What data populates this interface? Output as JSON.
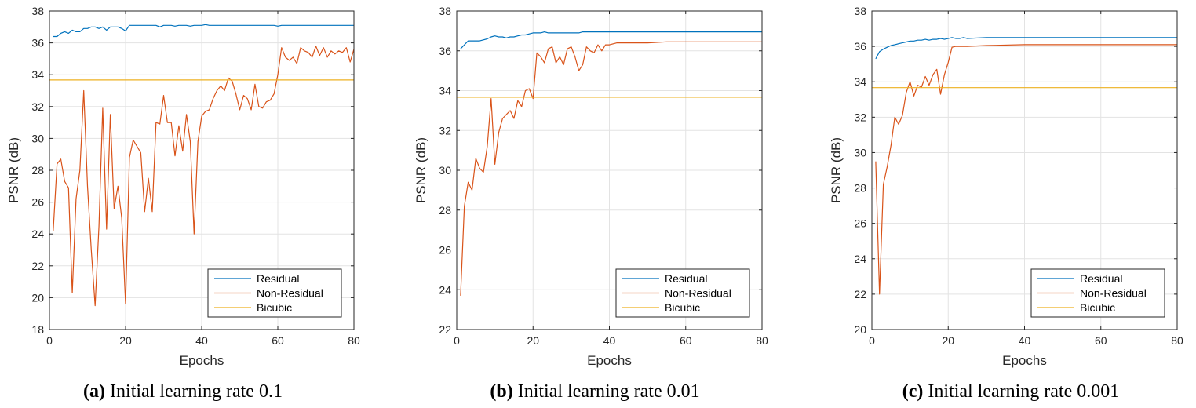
{
  "chart_data": [
    {
      "type": "line",
      "caption_tag": "(a)",
      "caption_text": "Initial learning rate 0.1",
      "xlabel": "Epochs",
      "ylabel": "PSNR (dB)",
      "xlim": [
        0,
        80
      ],
      "ylim": [
        18,
        38
      ],
      "xticks": [
        0,
        20,
        40,
        60,
        80
      ],
      "yticks": [
        18,
        20,
        22,
        24,
        26,
        28,
        30,
        32,
        34,
        36,
        38
      ],
      "grid": true,
      "legend_position": "bottom-right",
      "series": [
        {
          "name": "Residual",
          "color": "#0072BD",
          "x": [
            1,
            2,
            3,
            4,
            5,
            6,
            7,
            8,
            9,
            10,
            11,
            12,
            13,
            14,
            15,
            16,
            17,
            18,
            19,
            20,
            21,
            22,
            23,
            24,
            25,
            26,
            27,
            28,
            29,
            30,
            31,
            32,
            33,
            34,
            35,
            36,
            37,
            38,
            39,
            40,
            41,
            42,
            43,
            44,
            45,
            46,
            47,
            48,
            49,
            50,
            51,
            52,
            53,
            54,
            55,
            56,
            57,
            58,
            59,
            60,
            61,
            62,
            63,
            64,
            65,
            66,
            67,
            68,
            69,
            70,
            71,
            72,
            73,
            74,
            75,
            76,
            77,
            78,
            79,
            80
          ],
          "values": [
            36.4,
            36.4,
            36.6,
            36.7,
            36.6,
            36.8,
            36.7,
            36.7,
            36.9,
            36.9,
            37.0,
            37.0,
            36.9,
            37.0,
            36.8,
            37.0,
            37.0,
            37.0,
            36.9,
            36.75,
            37.1,
            37.1,
            37.1,
            37.1,
            37.1,
            37.1,
            37.1,
            37.1,
            37.0,
            37.1,
            37.1,
            37.1,
            37.05,
            37.1,
            37.1,
            37.1,
            37.05,
            37.1,
            37.1,
            37.1,
            37.15,
            37.1,
            37.1,
            37.1,
            37.1,
            37.1,
            37.1,
            37.1,
            37.1,
            37.1,
            37.1,
            37.1,
            37.1,
            37.1,
            37.1,
            37.1,
            37.1,
            37.1,
            37.1,
            37.05,
            37.1,
            37.1,
            37.1,
            37.1,
            37.1,
            37.1,
            37.1,
            37.1,
            37.1,
            37.1,
            37.1,
            37.1,
            37.1,
            37.1,
            37.1,
            37.1,
            37.1,
            37.1,
            37.1,
            37.1
          ]
        },
        {
          "name": "Non-Residual",
          "color": "#D95319",
          "x": [
            1,
            2,
            3,
            4,
            5,
            6,
            7,
            8,
            9,
            10,
            11,
            12,
            13,
            14,
            15,
            16,
            17,
            18,
            19,
            20,
            21,
            22,
            23,
            24,
            25,
            26,
            27,
            28,
            29,
            30,
            31,
            32,
            33,
            34,
            35,
            36,
            37,
            38,
            39,
            40,
            41,
            42,
            43,
            44,
            45,
            46,
            47,
            48,
            49,
            50,
            51,
            52,
            53,
            54,
            55,
            56,
            57,
            58,
            59,
            60,
            61,
            62,
            63,
            64,
            65,
            66,
            67,
            68,
            69,
            70,
            71,
            72,
            73,
            74,
            75,
            76,
            77,
            78,
            79,
            80
          ],
          "values": [
            24.2,
            28.4,
            28.7,
            27.3,
            26.9,
            20.3,
            26.2,
            28.0,
            33.0,
            27.0,
            23.0,
            19.5,
            24.5,
            31.9,
            24.3,
            31.5,
            25.6,
            27.0,
            25.0,
            19.6,
            28.8,
            29.9,
            29.5,
            29.1,
            25.4,
            27.5,
            25.4,
            31.0,
            30.9,
            32.7,
            31.0,
            31.0,
            28.9,
            30.8,
            29.2,
            31.5,
            29.8,
            24.0,
            29.8,
            31.4,
            31.7,
            31.8,
            32.5,
            33.0,
            33.3,
            33.0,
            33.8,
            33.6,
            32.8,
            31.8,
            32.7,
            32.5,
            31.8,
            33.4,
            32.0,
            31.9,
            32.3,
            32.4,
            32.8,
            34.0,
            35.7,
            35.1,
            34.9,
            35.1,
            34.7,
            35.7,
            35.5,
            35.4,
            35.1,
            35.8,
            35.2,
            35.7,
            35.1,
            35.5,
            35.3,
            35.5,
            35.4,
            35.7,
            34.8,
            35.6
          ]
        },
        {
          "name": "Bicubic",
          "color": "#EDB120",
          "x": [
            0,
            80
          ],
          "values": [
            33.67,
            33.67
          ]
        }
      ]
    },
    {
      "type": "line",
      "caption_tag": "(b)",
      "caption_text": "Initial learning rate 0.01",
      "xlabel": "Epochs",
      "ylabel": "PSNR (dB)",
      "xlim": [
        0,
        80
      ],
      "ylim": [
        22,
        38
      ],
      "xticks": [
        0,
        20,
        40,
        60,
        80
      ],
      "yticks": [
        22,
        24,
        26,
        28,
        30,
        32,
        34,
        36,
        38
      ],
      "grid": true,
      "legend_position": "bottom-right",
      "series": [
        {
          "name": "Residual",
          "color": "#0072BD",
          "x": [
            1,
            2,
            3,
            4,
            5,
            6,
            7,
            8,
            9,
            10,
            11,
            12,
            13,
            14,
            15,
            16,
            17,
            18,
            19,
            20,
            21,
            22,
            23,
            24,
            25,
            26,
            27,
            28,
            29,
            30,
            31,
            32,
            33,
            34,
            35,
            36,
            37,
            38,
            39,
            40,
            45,
            50,
            55,
            60,
            65,
            70,
            75,
            80
          ],
          "values": [
            36.1,
            36.3,
            36.5,
            36.5,
            36.5,
            36.5,
            36.55,
            36.6,
            36.7,
            36.75,
            36.7,
            36.7,
            36.65,
            36.7,
            36.7,
            36.75,
            36.8,
            36.8,
            36.85,
            36.9,
            36.9,
            36.9,
            36.95,
            36.9,
            36.9,
            36.9,
            36.9,
            36.9,
            36.9,
            36.9,
            36.9,
            36.9,
            36.95,
            36.95,
            36.95,
            36.95,
            36.95,
            36.95,
            36.95,
            36.95,
            36.95,
            36.95,
            36.95,
            36.95,
            36.95,
            36.95,
            36.95,
            36.95
          ]
        },
        {
          "name": "Non-Residual",
          "color": "#D95319",
          "x": [
            1,
            2,
            3,
            4,
            5,
            6,
            7,
            8,
            9,
            10,
            11,
            12,
            13,
            14,
            15,
            16,
            17,
            18,
            19,
            20,
            21,
            22,
            23,
            24,
            25,
            26,
            27,
            28,
            29,
            30,
            31,
            32,
            33,
            34,
            35,
            36,
            37,
            38,
            39,
            40,
            42,
            45,
            50,
            55,
            60,
            65,
            70,
            75,
            80
          ],
          "values": [
            23.7,
            28.2,
            29.4,
            29.0,
            30.6,
            30.1,
            29.9,
            31.2,
            33.6,
            30.3,
            31.9,
            32.6,
            32.8,
            33.0,
            32.6,
            33.5,
            33.2,
            34.0,
            34.1,
            33.6,
            35.9,
            35.7,
            35.4,
            36.1,
            36.2,
            35.4,
            35.7,
            35.3,
            36.1,
            36.2,
            35.7,
            35.0,
            35.3,
            36.2,
            36.0,
            35.9,
            36.3,
            36.0,
            36.3,
            36.3,
            36.4,
            36.4,
            36.4,
            36.45,
            36.45,
            36.45,
            36.45,
            36.45,
            36.45
          ]
        },
        {
          "name": "Bicubic",
          "color": "#EDB120",
          "x": [
            0,
            80
          ],
          "values": [
            33.67,
            33.67
          ]
        }
      ]
    },
    {
      "type": "line",
      "caption_tag": "(c)",
      "caption_text": "Initial learning rate 0.001",
      "xlabel": "Epochs",
      "ylabel": "PSNR (dB)",
      "xlim": [
        0,
        80
      ],
      "ylim": [
        20,
        38
      ],
      "xticks": [
        0,
        20,
        40,
        60,
        80
      ],
      "yticks": [
        20,
        22,
        24,
        26,
        28,
        30,
        32,
        34,
        36,
        38
      ],
      "grid": true,
      "legend_position": "bottom-right",
      "series": [
        {
          "name": "Residual",
          "color": "#0072BD",
          "x": [
            1,
            2,
            3,
            4,
            5,
            6,
            7,
            8,
            9,
            10,
            11,
            12,
            13,
            14,
            15,
            16,
            17,
            18,
            19,
            20,
            21,
            22,
            23,
            24,
            25,
            30,
            35,
            40,
            45,
            50,
            55,
            60,
            65,
            70,
            75,
            80
          ],
          "values": [
            35.3,
            35.7,
            35.85,
            35.95,
            36.05,
            36.1,
            36.15,
            36.2,
            36.25,
            36.3,
            36.3,
            36.35,
            36.35,
            36.4,
            36.35,
            36.4,
            36.4,
            36.45,
            36.4,
            36.45,
            36.5,
            36.45,
            36.45,
            36.5,
            36.45,
            36.5,
            36.5,
            36.5,
            36.5,
            36.5,
            36.5,
            36.5,
            36.5,
            36.5,
            36.5,
            36.5
          ]
        },
        {
          "name": "Non-Residual",
          "color": "#D95319",
          "x": [
            1,
            2,
            3,
            4,
            5,
            6,
            7,
            8,
            9,
            10,
            11,
            12,
            13,
            14,
            15,
            16,
            17,
            18,
            19,
            20,
            21,
            22,
            25,
            30,
            40,
            50,
            60,
            70,
            80
          ],
          "values": [
            29.5,
            22.0,
            28.2,
            29.2,
            30.4,
            32.0,
            31.6,
            32.1,
            33.4,
            34.0,
            33.2,
            33.8,
            33.7,
            34.3,
            33.8,
            34.4,
            34.7,
            33.3,
            34.4,
            35.1,
            35.95,
            36.0,
            36.0,
            36.05,
            36.1,
            36.1,
            36.1,
            36.1,
            36.1
          ]
        },
        {
          "name": "Bicubic",
          "color": "#EDB120",
          "x": [
            0,
            80
          ],
          "values": [
            33.67,
            33.67
          ]
        }
      ]
    }
  ]
}
